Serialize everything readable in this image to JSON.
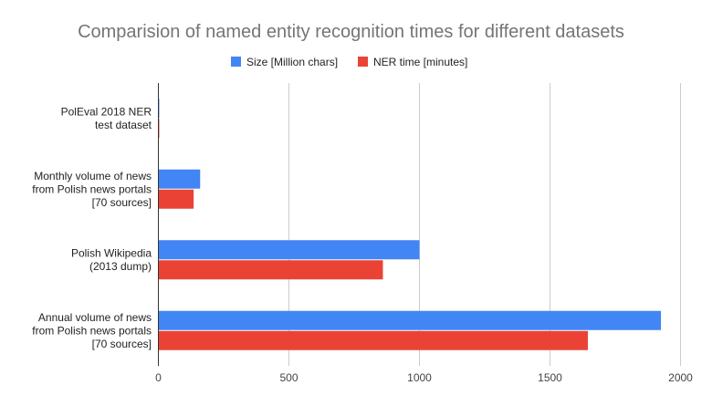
{
  "chart_data": {
    "type": "bar",
    "orientation": "horizontal",
    "title": "Comparision of named entity recognition times for different datasets",
    "xlabel": "",
    "ylabel": "",
    "categories": [
      [
        "PolEval 2018 NER",
        "test dataset"
      ],
      [
        "Monthly volume of news",
        "from Polish news portals",
        "[70 sources]"
      ],
      [
        "Polish Wikipedia",
        "(2013 dump)"
      ],
      [
        "Annual volume of news",
        "from Polish news portals",
        "[70 sources]"
      ]
    ],
    "series": [
      {
        "name": "Size [Million chars]",
        "color": "#4285f4",
        "values": [
          1,
          160,
          1000,
          1925
        ]
      },
      {
        "name": "NER time [minutes]",
        "color": "#ea4335",
        "values": [
          1,
          135,
          860,
          1645
        ]
      }
    ],
    "xlim": [
      0,
      2000
    ],
    "xticks": [
      0,
      500,
      1000,
      1500,
      2000
    ],
    "grid": true,
    "legend_position": "top"
  }
}
